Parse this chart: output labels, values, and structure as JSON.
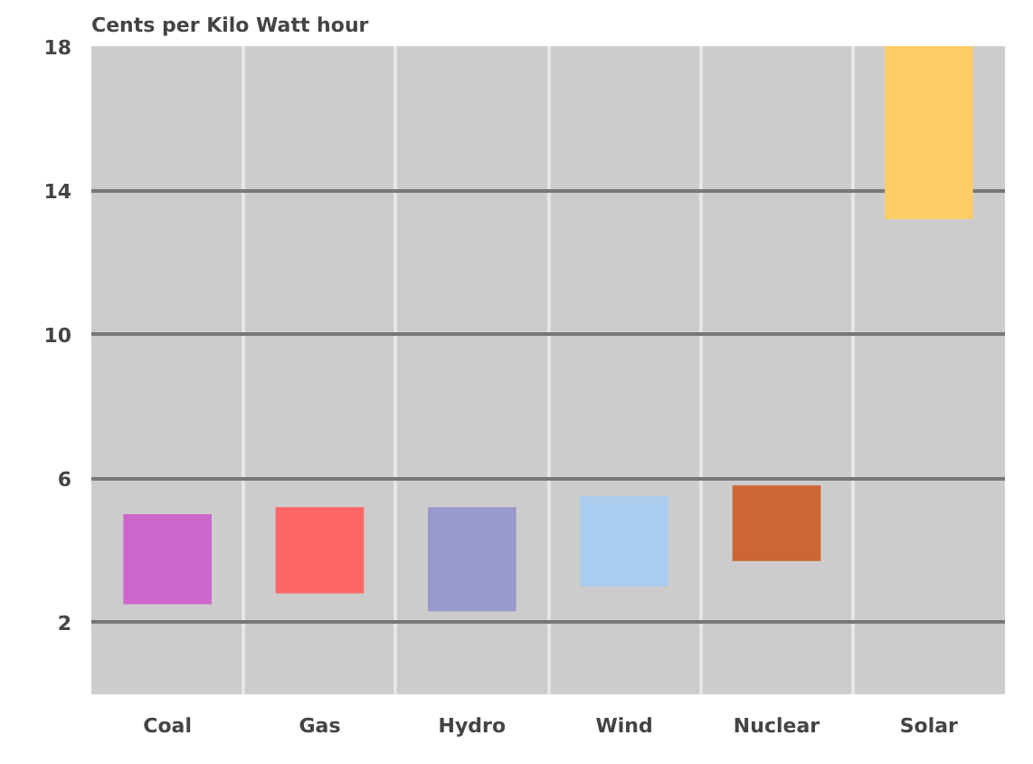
{
  "chart_data": {
    "type": "bar",
    "title": "Cents per Kilo Watt hour",
    "categories": [
      "Coal",
      "Gas",
      "Hydro",
      "Wind",
      "Nuclear",
      "Solar"
    ],
    "base": [
      2.5,
      2.8,
      2.3,
      3.0,
      3.7,
      13.2
    ],
    "values": [
      2.5,
      2.4,
      2.9,
      2.5,
      2.1,
      4.8
    ],
    "colors": [
      "#cc66cc",
      "#ff6666",
      "#9999cc",
      "#aaccee",
      "#cc6633",
      "#ffcc66"
    ],
    "ylim": [
      0,
      18
    ],
    "yticks": [
      2,
      6,
      10,
      14,
      18
    ],
    "grid": true
  }
}
